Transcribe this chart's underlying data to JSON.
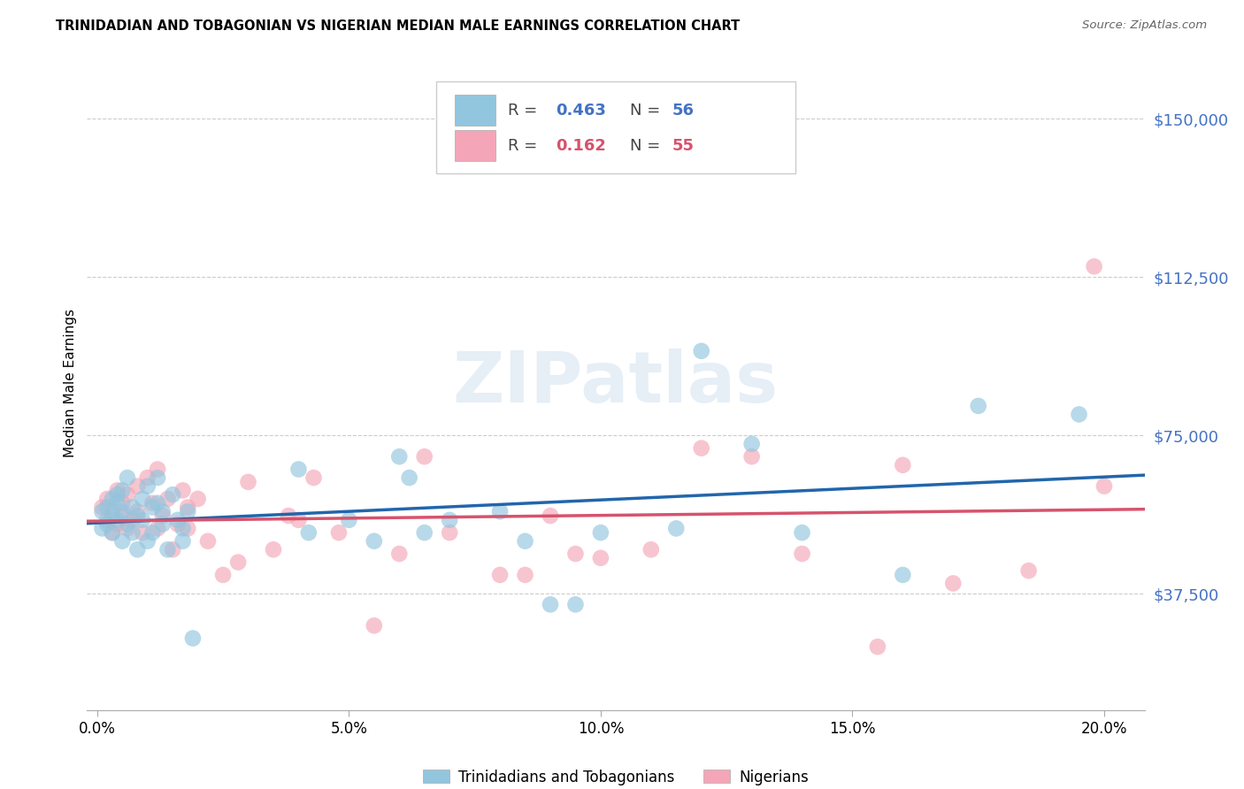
{
  "title": "TRINIDADIAN AND TOBAGONIAN VS NIGERIAN MEDIAN MALE EARNINGS CORRELATION CHART",
  "source": "Source: ZipAtlas.com",
  "ylabel": "Median Male Earnings",
  "xlabel_ticks": [
    "0.0%",
    "5.0%",
    "10.0%",
    "15.0%",
    "20.0%"
  ],
  "xlabel_vals": [
    0.0,
    0.05,
    0.1,
    0.15,
    0.2
  ],
  "ytick_labels": [
    "$37,500",
    "$75,000",
    "$112,500",
    "$150,000"
  ],
  "ytick_vals": [
    37500,
    75000,
    112500,
    150000
  ],
  "ylim": [
    10000,
    165000
  ],
  "xlim": [
    -0.002,
    0.208
  ],
  "watermark": "ZIPatlas",
  "legend_blue_label": "Trinidadians and Tobagonians",
  "legend_pink_label": "Nigerians",
  "blue_R": "0.463",
  "blue_N": "56",
  "pink_R": "0.162",
  "pink_N": "55",
  "blue_color": "#92c5de",
  "pink_color": "#f4a6b8",
  "line_blue": "#2166ac",
  "line_pink": "#d6536d",
  "tick_color": "#4472c4",
  "source_color": "#666666",
  "blue_x": [
    0.001,
    0.001,
    0.002,
    0.002,
    0.003,
    0.003,
    0.003,
    0.004,
    0.004,
    0.004,
    0.005,
    0.005,
    0.005,
    0.006,
    0.006,
    0.007,
    0.007,
    0.008,
    0.008,
    0.009,
    0.009,
    0.01,
    0.01,
    0.011,
    0.011,
    0.012,
    0.012,
    0.013,
    0.013,
    0.014,
    0.015,
    0.016,
    0.017,
    0.017,
    0.018,
    0.019,
    0.04,
    0.042,
    0.05,
    0.055,
    0.06,
    0.062,
    0.065,
    0.07,
    0.08,
    0.085,
    0.09,
    0.095,
    0.1,
    0.115,
    0.12,
    0.13,
    0.14,
    0.16,
    0.175,
    0.195
  ],
  "blue_y": [
    57000,
    53000,
    58000,
    54000,
    60000,
    56000,
    52000,
    59000,
    61000,
    55000,
    57000,
    50000,
    62000,
    54000,
    65000,
    58000,
    52000,
    56000,
    48000,
    60000,
    55000,
    63000,
    50000,
    58000,
    52000,
    65000,
    59000,
    54000,
    57000,
    48000,
    61000,
    55000,
    53000,
    50000,
    57000,
    27000,
    67000,
    52000,
    55000,
    50000,
    70000,
    65000,
    52000,
    55000,
    57000,
    50000,
    35000,
    35000,
    52000,
    53000,
    95000,
    73000,
    52000,
    42000,
    82000,
    80000
  ],
  "pink_x": [
    0.001,
    0.002,
    0.002,
    0.003,
    0.003,
    0.004,
    0.004,
    0.005,
    0.005,
    0.006,
    0.006,
    0.007,
    0.008,
    0.008,
    0.009,
    0.01,
    0.011,
    0.012,
    0.012,
    0.013,
    0.014,
    0.015,
    0.016,
    0.017,
    0.018,
    0.018,
    0.02,
    0.022,
    0.025,
    0.028,
    0.03,
    0.035,
    0.038,
    0.04,
    0.043,
    0.048,
    0.055,
    0.06,
    0.065,
    0.07,
    0.08,
    0.085,
    0.09,
    0.095,
    0.1,
    0.11,
    0.12,
    0.13,
    0.14,
    0.155,
    0.16,
    0.17,
    0.185,
    0.198,
    0.2
  ],
  "pink_y": [
    58000,
    55000,
    60000,
    52000,
    57000,
    54000,
    62000,
    56000,
    59000,
    53000,
    61000,
    55000,
    63000,
    57000,
    52000,
    65000,
    59000,
    53000,
    67000,
    56000,
    60000,
    48000,
    54000,
    62000,
    58000,
    53000,
    60000,
    50000,
    42000,
    45000,
    64000,
    48000,
    56000,
    55000,
    65000,
    52000,
    30000,
    47000,
    70000,
    52000,
    42000,
    42000,
    56000,
    47000,
    46000,
    48000,
    72000,
    70000,
    47000,
    25000,
    68000,
    40000,
    43000,
    115000,
    63000
  ]
}
